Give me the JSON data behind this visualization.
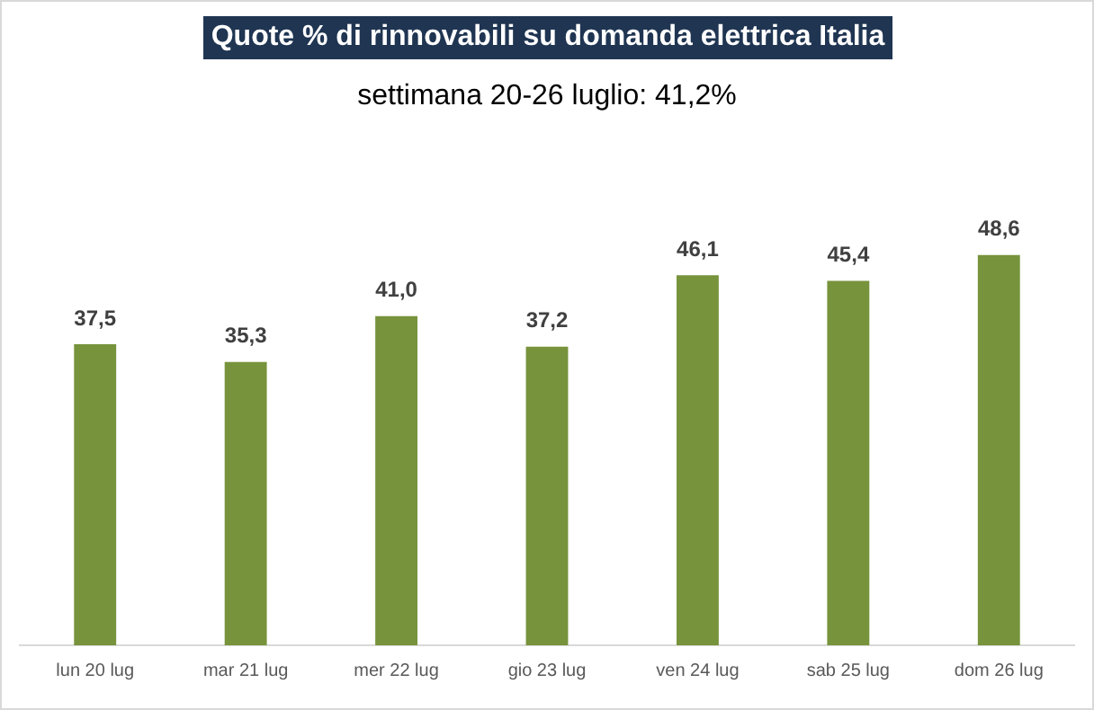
{
  "chart_data": {
    "type": "bar",
    "title": "Quote % di rinnovabili su domanda elettrica Italia",
    "subtitle": "settimana 20-26 luglio: 41,2%",
    "categories": [
      "lun 20 lug",
      "mar 21 lug",
      "mer 22 lug",
      "gio 23 lug",
      "ven 24 lug",
      "sab 25 lug",
      "dom 26 lug"
    ],
    "values": [
      37.5,
      35.3,
      41.0,
      37.2,
      46.1,
      45.4,
      48.6
    ],
    "value_labels": [
      "37,5",
      "35,3",
      "41,0",
      "37,2",
      "46,1",
      "45,4",
      "48,6"
    ],
    "color": "#77933c",
    "grid": false,
    "legend": false
  }
}
